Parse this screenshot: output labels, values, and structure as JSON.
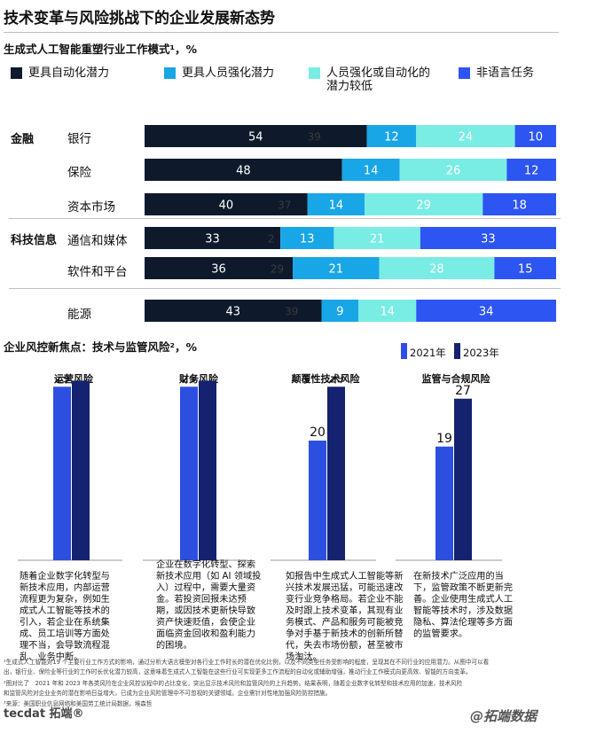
{
  "title": "技术变革与风险挑战下的企业发展新态势",
  "chart1_subtitle": "生成式人工智能重塑行业工作模式¹，%",
  "chart2_subtitle": "企业风控新焦点：技术与监管风险²，%",
  "colors": {
    "dark_navy": "#0e1a2b",
    "cyan": "#19a6e6",
    "aqua": "#79ece4",
    "blue": "#2d55f1",
    "bar2021": "#2c4fe0",
    "bar2023": "#152270"
  },
  "chart_data": [
    {
      "type": "bar",
      "orientation": "horizontal",
      "stacked": true,
      "title": "生成式人工智能重塑行业工作模式¹，%",
      "legend": [
        "更具自动化潜力",
        "更具人员强化潜力",
        "人员强化或自动化的潜力较低",
        "非语言任务"
      ],
      "groups": [
        {
          "label": "金融",
          "rows": [
            {
              "label": "银行",
              "values": [
                54,
                12,
                24,
                10
              ],
              "ghost": "39"
            },
            {
              "label": "保险",
              "values": [
                48,
                14,
                26,
                12
              ],
              "ghost": ""
            },
            {
              "label": "资本市场",
              "values": [
                40,
                14,
                29,
                18
              ],
              "ghost": "37"
            }
          ]
        },
        {
          "label": "科技信息",
          "rows": [
            {
              "label": "通信和媒体",
              "values": [
                33,
                13,
                21,
                33
              ],
              "ghost": "2"
            },
            {
              "label": "软件和平台",
              "values": [
                36,
                21,
                28,
                15
              ],
              "ghost": "29"
            }
          ]
        },
        {
          "label": "",
          "rows": [
            {
              "label": "能源",
              "values": [
                43,
                9,
                14,
                34
              ],
              "ghost": "39"
            }
          ]
        }
      ]
    },
    {
      "type": "bar",
      "title": "企业风控新焦点：技术与监管风险²，%",
      "series": [
        {
          "name": "2021年",
          "values": [
            29,
            29,
            20,
            19
          ]
        },
        {
          "name": "2023年",
          "values": [
            30,
            30,
            29,
            27
          ]
        }
      ],
      "categories": [
        "运营风险",
        "财务风险",
        "颠覆性技术风险",
        "监管与合规风险"
      ],
      "ylim": [
        0,
        60
      ]
    }
  ],
  "descriptions": [
    "随着企业数字化转型与新技术应用，内部运营流程更为复杂，例如生成式人工智能等技术的引入，若企业在系统集成、员工培训等方面处理不当，会导致流程混乱、业务中断。",
    "企业在数字化转型、探索新技术应用（如 AI 领域投入）过程中，需要大量资金。若投资回报未达预期，或因技术更新快导致资产快速贬值，会使企业面临资金回收和盈利能力的困境。",
    "如报告中生成式人工智能等新兴技术发展迅猛，可能迅速改变行业竞争格局。若企业不能及时跟上技术变革，其现有业务模式、产品和服务可能被竞争对手基于新技术的创新所替代，失去市场份额，甚至被市场淘汰。",
    "在新技术广泛应用的当下，监管政策不断更新完善。企业使用生成式人工智能等技术时，涉及数据隐私、算法伦理等多方面的监管要求。"
  ],
  "footnotes": [
    "¹生成式人工智能对19 个主要行业工作方式的影响，通过分析大语言模型对各行业工作时长的潜在优化比例，以及不同类型任务受影响的程度，呈现其在不同行业的应用潜力。从图中可以看",
    "出，银行业、保险业等行业的工作时长优化潜力较高，这意味着生成式人工智能在这些行业可实现更多工作流程的自动化或辅助增强，推动行业工作模式向更高效、智能的方向变革。",
    "²图对比了　2021 年和 2023 年各类风险在企业风控议程中的占比变化，突出显示技术风险和监管风险的上升趋势。结果表明，随着企业数字化转型和技术应用的加速，技术风险",
    "和监管风险对企业业务的潜在影响日益增大，已成为企业风险管理中不可忽视的关键领域。企业需针对性地加强风险防控措施。",
    "³来源：美国职业信息网络和美国劳工统计局数据，埃森哲"
  ],
  "logo": "tecdat 拓端®",
  "watermark": "@拓端数据"
}
